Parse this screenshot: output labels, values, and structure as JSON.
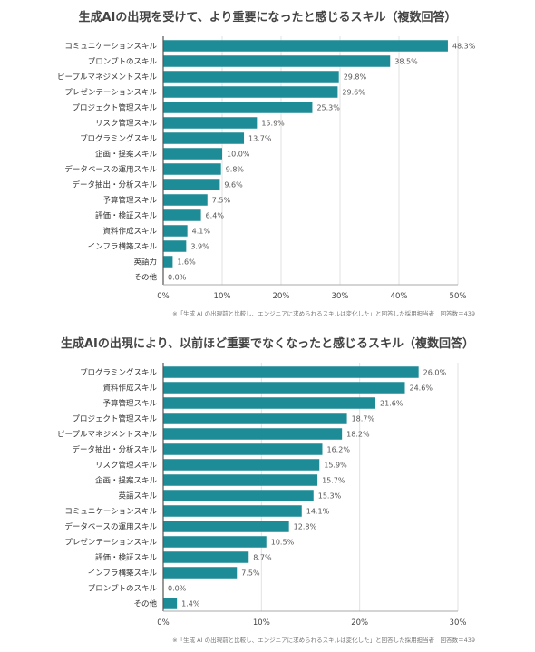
{
  "chart_data": [
    {
      "type": "bar",
      "orientation": "horizontal",
      "title": "生成AIの出現を受けて、より重要になったと感じるスキル（複数回答）",
      "categories": [
        "コミュニケーションスキル",
        "プロンプトのスキル",
        "ピープルマネジメントスキル",
        "プレゼンテーションスキル",
        "プロジェクト管理スキル",
        "リスク管理スキル",
        "プログラミングスキル",
        "企画・提案スキル",
        "データベースの運用スキル",
        "データ抽出・分析スキル",
        "予算管理スキル",
        "評価・検証スキル",
        "資料作成スキル",
        "インフラ構築スキル",
        "英語力",
        "その他"
      ],
      "values": [
        48.3,
        38.5,
        29.8,
        29.6,
        25.3,
        15.9,
        13.7,
        10.0,
        9.8,
        9.6,
        7.5,
        6.4,
        4.1,
        3.9,
        1.6,
        0.0
      ],
      "value_labels": [
        "48.3%",
        "38.5%",
        "29.8%",
        "29.6%",
        "25.3%",
        "15.9%",
        "13.7%",
        "10.0%",
        "9.8%",
        "9.6%",
        "7.5%",
        "6.4%",
        "4.1%",
        "3.9%",
        "1.6%",
        "0.0%"
      ],
      "xlim": [
        0,
        50
      ],
      "ticks": [
        0,
        10,
        20,
        30,
        40,
        50
      ],
      "tick_labels": [
        "0%",
        "10%",
        "20%",
        "30%",
        "40%",
        "50%"
      ],
      "note": "※「生成 AI の出現前と比較し、エンジニアに求められるスキルは変化した」と回答した採用担当者　回答数＝439",
      "bar_color": "#1e8c96",
      "gridlines": true
    },
    {
      "type": "bar",
      "orientation": "horizontal",
      "title": "生成AIの出現により、以前ほど重要でなくなったと感じるスキル（複数回答）",
      "categories": [
        "プログラミングスキル",
        "資料作成スキル",
        "予算管理スキル",
        "プロジェクト管理スキル",
        "ピープルマネジメントスキル",
        "データ抽出・分析スキル",
        "リスク管理スキル",
        "企画・提案スキル",
        "英語スキル",
        "コミュニケーションスキル",
        "データベースの運用スキル",
        "プレゼンテーションスキル",
        "評価・検証スキル",
        "インフラ構築スキル",
        "プロンプトのスキル",
        "その他"
      ],
      "values": [
        26.0,
        24.6,
        21.6,
        18.7,
        18.2,
        16.2,
        15.9,
        15.7,
        15.3,
        14.1,
        12.8,
        10.5,
        8.7,
        7.5,
        0.0,
        1.4
      ],
      "value_labels": [
        "26.0%",
        "24.6%",
        "21.6%",
        "18.7%",
        "18.2%",
        "16.2%",
        "15.9%",
        "15.7%",
        "15.3%",
        "14.1%",
        "12.8%",
        "10.5%",
        "8.7%",
        "7.5%",
        "0.0%",
        "1.4%"
      ],
      "xlim": [
        0,
        30
      ],
      "ticks": [
        0,
        10,
        20,
        30
      ],
      "tick_labels": [
        "0%",
        "10%",
        "20%",
        "30%"
      ],
      "note": "※「生成 AI の出現前と比較し、エンジニアに求められるスキルは変化した」と回答した採用担当者　回答数＝439",
      "bar_color": "#1e8c96",
      "gridlines": true
    }
  ]
}
